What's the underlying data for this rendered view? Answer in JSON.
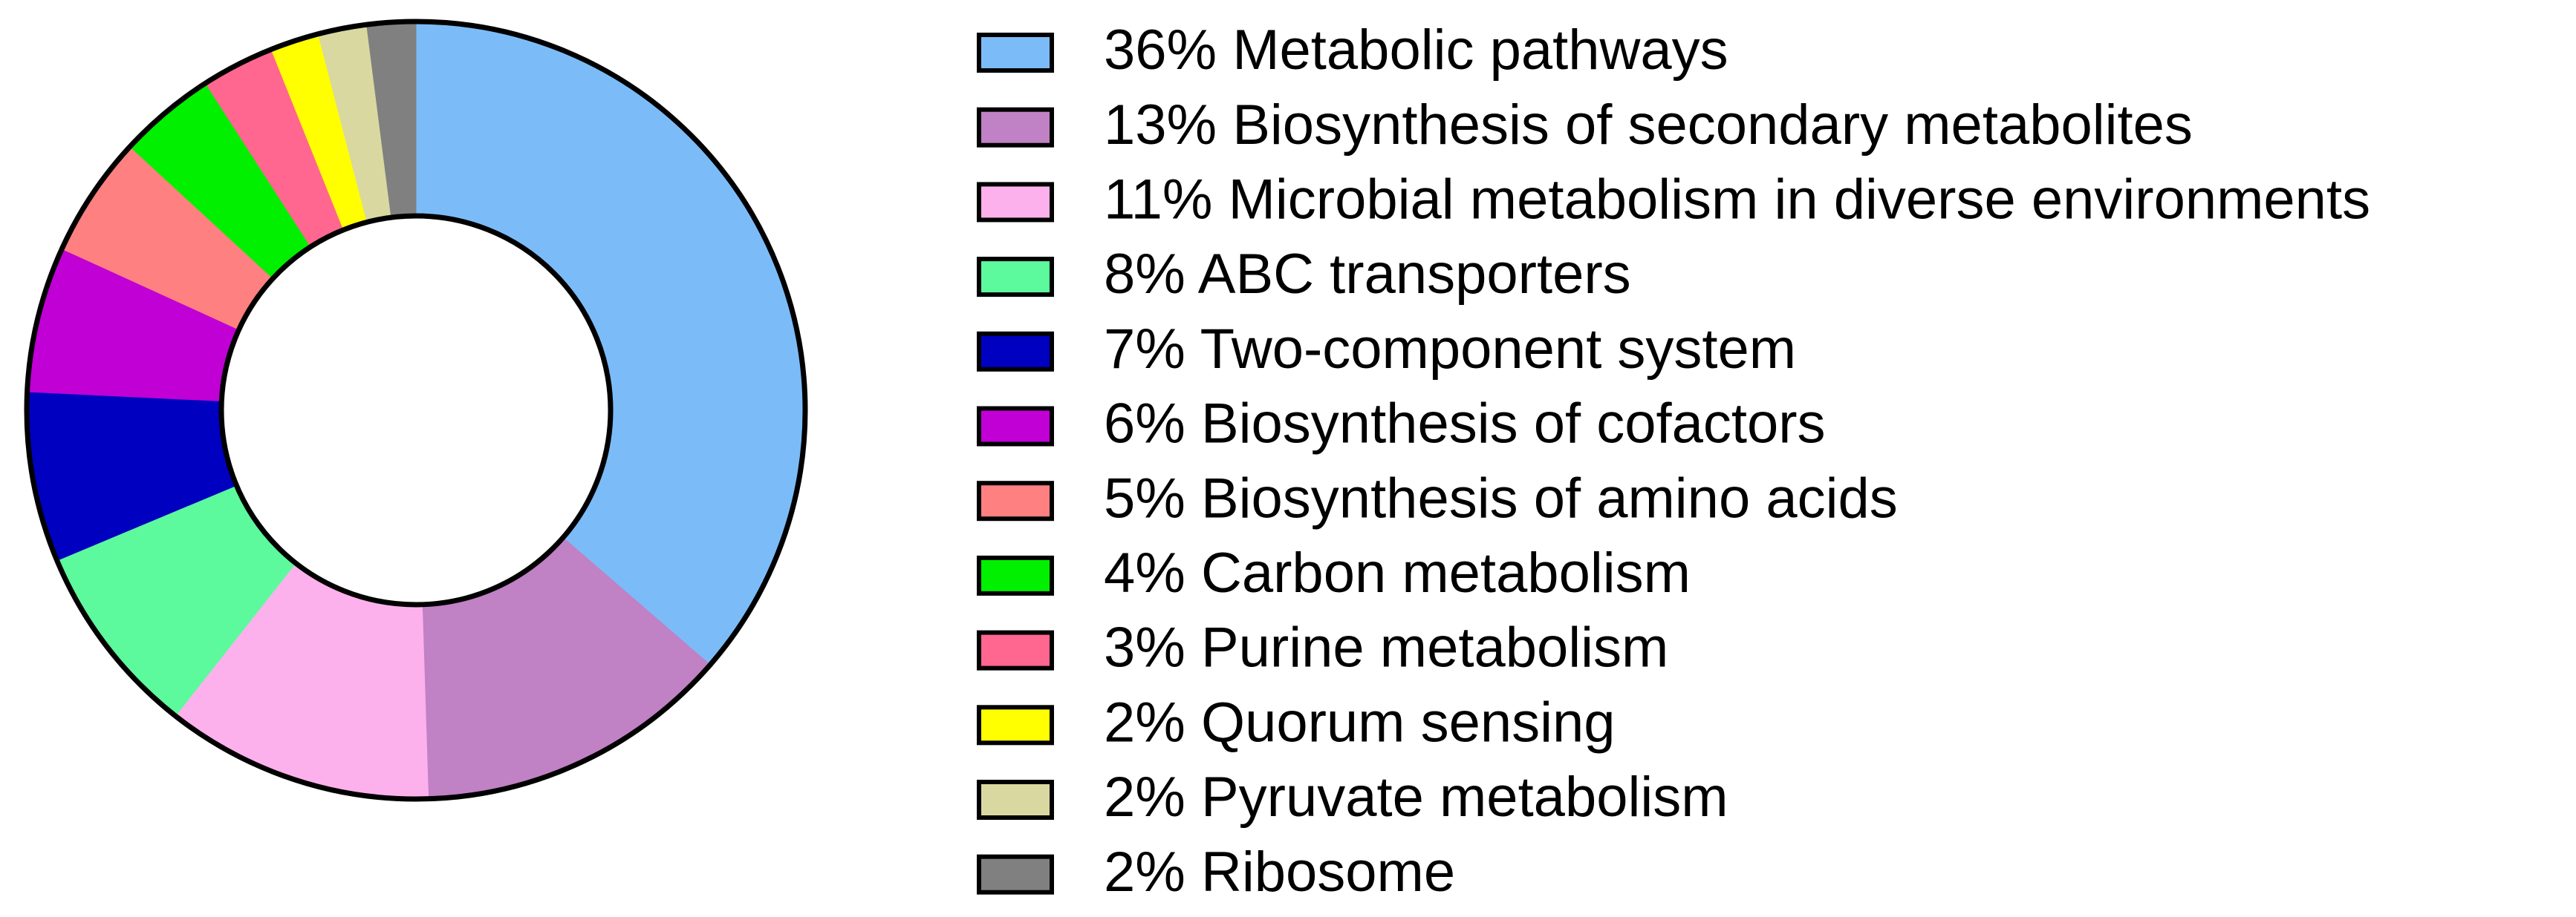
{
  "chart_data": {
    "type": "donut",
    "labels": [
      "36% Metabolic pathways",
      "13% Biosynthesis of secondary metabolites",
      "11% Microbial metabolism in diverse environments",
      "8% ABC transporters",
      "7% Two-component system",
      "6% Biosynthesis of cofactors",
      "5% Biosynthesis of amino acids",
      "4% Carbon metabolism",
      "3% Purine metabolism",
      "2% Quorum sensing",
      "2% Pyruvate metabolism",
      "2% Ribosome"
    ],
    "values": [
      36,
      13,
      11,
      8,
      7,
      6,
      5,
      4,
      3,
      2,
      2,
      2
    ],
    "colors": [
      "#7bbcf8",
      "#c081c5",
      "#fcb1ec",
      "#5cfa9c",
      "#0000c0",
      "#c000d4",
      "#ff8080",
      "#00f000",
      "#ff6690",
      "#ffff00",
      "#d9d8a0",
      "#808080"
    ]
  }
}
